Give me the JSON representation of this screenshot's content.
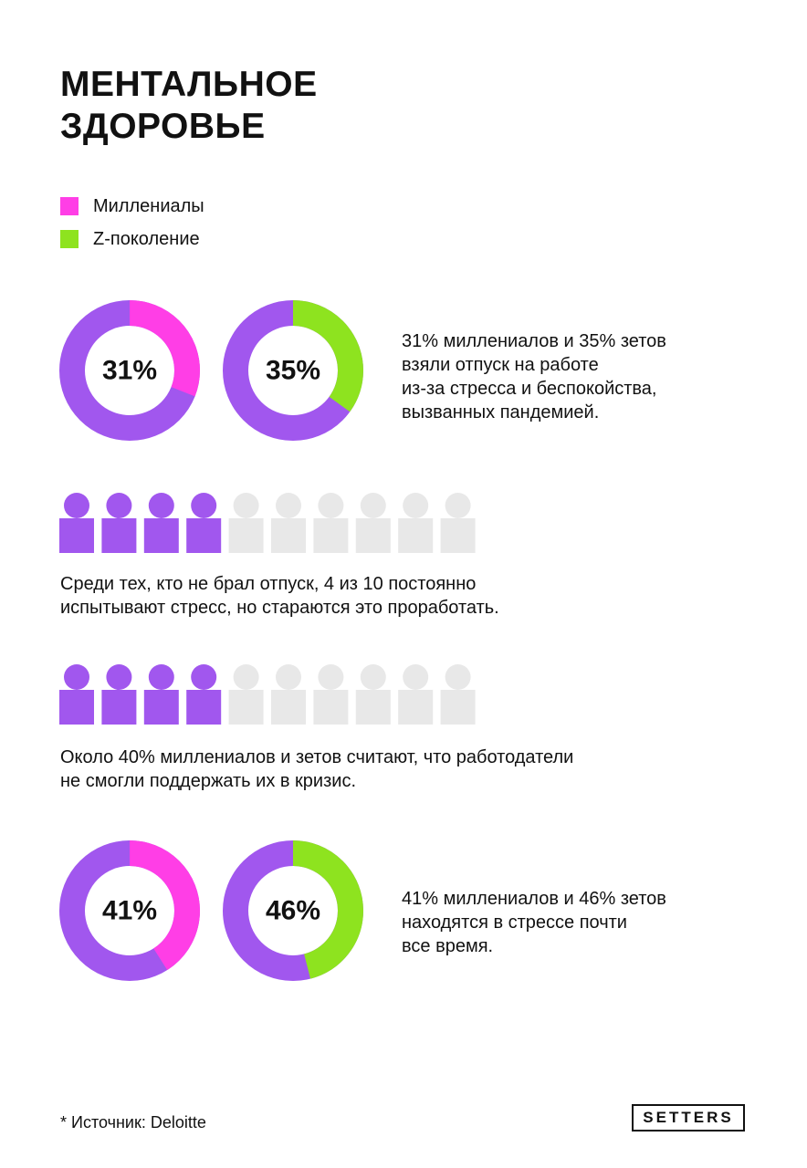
{
  "title": {
    "line1": "МЕНТАЛЬНОЕ",
    "line2": "ЗДОРОВЬЕ"
  },
  "colors": {
    "millennials": "#ff3ee6",
    "genz": "#8ee31f",
    "base": "#a157ee",
    "inactive": "#e8e8e8"
  },
  "legend": [
    {
      "label": "Миллениалы",
      "color": "#ff3ee6"
    },
    {
      "label": "Z-поколение",
      "color": "#8ee31f"
    }
  ],
  "chart_data": [
    {
      "type": "pie",
      "label": "31%",
      "value": 31,
      "series": "Миллениалы",
      "color": "#ff3ee6"
    },
    {
      "type": "pie",
      "label": "35%",
      "value": 35,
      "series": "Z-поколение",
      "color": "#8ee31f"
    },
    {
      "type": "bar",
      "total": 10,
      "highlighted": 4
    },
    {
      "type": "bar",
      "total": 10,
      "highlighted": 4
    },
    {
      "type": "pie",
      "label": "41%",
      "value": 41,
      "series": "Миллениалы",
      "color": "#ff3ee6"
    },
    {
      "type": "pie",
      "label": "46%",
      "value": 46,
      "series": "Z-поколение",
      "color": "#8ee31f"
    }
  ],
  "captions": {
    "vacation": [
      "31% миллениалов и 35% зетов",
      "взяли отпуск на работе",
      "из-за стресса и беспокойства,",
      "вызванных пандемией."
    ],
    "no_vacation": [
      "Среди тех, кто не брал отпуск, 4 из 10 постоянно",
      "испытывают стресс, но стараются это проработать."
    ],
    "employers": [
      "Около 40% миллениалов и зетов считают, что работодатели",
      "не смогли поддержать их в кризис."
    ],
    "stress": [
      "41% миллениалов и 46% зетов",
      "находятся в стрессе почти",
      "все время."
    ]
  },
  "footer": {
    "source": "* Источник: Deloitte",
    "logo": "SETTERS"
  }
}
